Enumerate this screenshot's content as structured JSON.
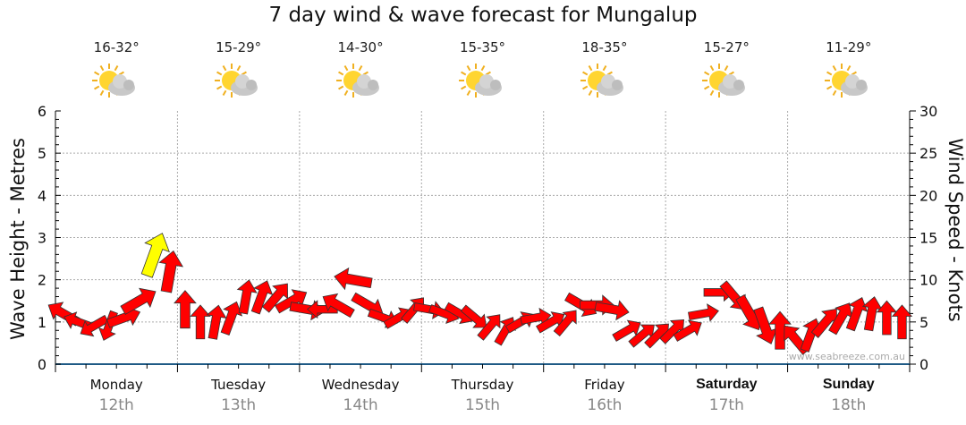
{
  "chart_data": {
    "type": "scatter",
    "title": "7 day wind & wave forecast for Mungalup",
    "ylabel": "Wave Height - Metres",
    "ylabel_right": "Wind Speed - Knots",
    "ylim": [
      0,
      6
    ],
    "ylim_right": [
      0,
      30
    ],
    "yticks": [
      "0",
      "1",
      "2",
      "3",
      "4",
      "5",
      "6"
    ],
    "yticks_right": [
      "0",
      "5",
      "10",
      "15",
      "20",
      "25",
      "30"
    ],
    "grid": true,
    "watermark": "www.seabreeze.com.au",
    "days": [
      {
        "name": "Monday",
        "date": "12th",
        "temp": "16-32°",
        "bold": false
      },
      {
        "name": "Tuesday",
        "date": "13th",
        "temp": "15-29°",
        "bold": false
      },
      {
        "name": "Wednesday",
        "date": "14th",
        "temp": "14-30°",
        "bold": false
      },
      {
        "name": "Thursday",
        "date": "15th",
        "temp": "15-35°",
        "bold": false
      },
      {
        "name": "Friday",
        "date": "16th",
        "temp": "18-35°",
        "bold": false
      },
      {
        "name": "Saturday",
        "date": "17th",
        "temp": "15-27°",
        "bold": true
      },
      {
        "name": "Sunday",
        "date": "18th",
        "temp": "11-29°",
        "bold": true
      }
    ],
    "weather_icon": "partly-cloudy-icon",
    "arrow_colors": {
      "normal": "#ff0000",
      "strong": "#ffff00"
    },
    "series": [
      {
        "name": "Monday",
        "wave_m": [
          1.2,
          1.0,
          0.9,
          0.9,
          1.1,
          1.5,
          2.6,
          2.2
        ],
        "heading_deg": [
          300,
          290,
          240,
          200,
          70,
          60,
          20,
          10
        ],
        "strong": [
          0,
          0,
          0,
          0,
          0,
          0,
          1,
          0
        ]
      },
      {
        "name": "Tuesday",
        "wave_m": [
          1.3,
          1.0,
          1.0,
          1.1,
          1.6,
          1.6,
          1.6,
          1.5
        ],
        "heading_deg": [
          0,
          0,
          10,
          20,
          10,
          20,
          40,
          60
        ],
        "strong": [
          0,
          0,
          0,
          0,
          0,
          0,
          0,
          0
        ]
      },
      {
        "name": "Wednesday",
        "wave_m": [
          1.3,
          1.3,
          1.4,
          2.0,
          1.4,
          1.1,
          1.1,
          1.3
        ],
        "heading_deg": [
          100,
          270,
          300,
          280,
          120,
          110,
          60,
          40
        ],
        "strong": [
          0,
          0,
          0,
          0,
          0,
          0,
          0,
          0
        ]
      },
      {
        "name": "Thursday",
        "wave_m": [
          1.3,
          1.2,
          1.2,
          1.1,
          0.9,
          0.8,
          1.0,
          1.1
        ],
        "heading_deg": [
          100,
          110,
          120,
          130,
          40,
          30,
          60,
          80
        ],
        "strong": [
          0,
          0,
          0,
          0,
          0,
          0,
          0,
          0
        ]
      },
      {
        "name": "Friday",
        "wave_m": [
          1.0,
          1.0,
          1.4,
          1.4,
          1.3,
          0.8,
          0.7,
          0.7
        ],
        "heading_deg": [
          60,
          40,
          120,
          90,
          100,
          60,
          50,
          45
        ],
        "strong": [
          0,
          0,
          0,
          0,
          0,
          0,
          0,
          0
        ]
      },
      {
        "name": "Saturday",
        "wave_m": [
          0.8,
          0.8,
          1.2,
          1.7,
          1.6,
          1.2,
          0.9,
          0.8
        ],
        "heading_deg": [
          45,
          60,
          80,
          90,
          140,
          150,
          160,
          0
        ],
        "strong": [
          0,
          0,
          0,
          0,
          0,
          0,
          0,
          0
        ]
      },
      {
        "name": "Sunday",
        "wave_m": [
          0.6,
          0.7,
          1.0,
          1.1,
          1.2,
          1.2,
          1.1,
          1.0
        ],
        "heading_deg": [
          320,
          20,
          40,
          30,
          20,
          10,
          0,
          0
        ],
        "strong": [
          0,
          0,
          0,
          0,
          0,
          0,
          0,
          0
        ]
      }
    ],
    "wind_kts": [
      9,
      8,
      8,
      8,
      9,
      10,
      12,
      11,
      10,
      9,
      9,
      9,
      9,
      9,
      9,
      9,
      9,
      8,
      9,
      10,
      9,
      8,
      8,
      8,
      8,
      8,
      8,
      8,
      8,
      8,
      8,
      8,
      8,
      8,
      9,
      9,
      9,
      8,
      8,
      8,
      8,
      8,
      8,
      8,
      9,
      10,
      10,
      10,
      9,
      9,
      9,
      9,
      9,
      9,
      9,
      9
    ]
  }
}
